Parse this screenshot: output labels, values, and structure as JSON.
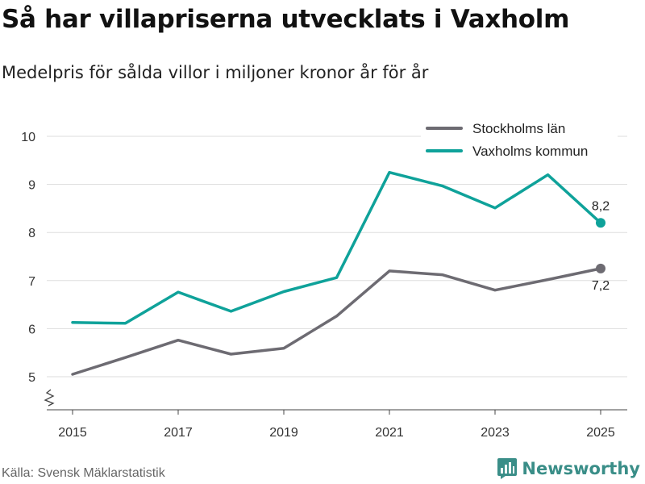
{
  "header": {
    "title": "Så har villapriserna utvecklats i Vaxholm",
    "subtitle": "Medelpris för sålda villor i miljoner kronor år för år"
  },
  "footer": {
    "source": "Källa: Svensk Mäklarstatistik",
    "brand": "Newsworthy"
  },
  "colors": {
    "stockholm": "#6d6b72",
    "vaxholm": "#0fa29a",
    "grid": "#dddddd",
    "brand": "#3a8e88"
  },
  "chart_data": {
    "type": "line",
    "title": "Så har villapriserna utvecklats i Vaxholm",
    "subtitle": "Medelpris för sålda villor i miljoner kronor år för år",
    "xlabel": "",
    "ylabel": "",
    "x": [
      2015,
      2016,
      2017,
      2018,
      2019,
      2020,
      2021,
      2022,
      2023,
      2024,
      2025
    ],
    "xticks": [
      2015,
      2017,
      2019,
      2021,
      2023,
      2025
    ],
    "yticks": [
      5,
      6,
      7,
      8,
      9,
      10
    ],
    "ylim": [
      4.3,
      10.4
    ],
    "y_axis_break": true,
    "grid": true,
    "legend_position": "top-right",
    "series": [
      {
        "name": "Stockholms län",
        "color_key": "stockholm",
        "values": [
          5.05,
          5.4,
          5.76,
          5.47,
          5.59,
          6.26,
          7.2,
          7.12,
          6.8,
          7.02,
          7.25
        ],
        "end_label": "7,2"
      },
      {
        "name": "Vaxholms kommun",
        "color_key": "vaxholm",
        "values": [
          6.13,
          6.11,
          6.76,
          6.36,
          6.77,
          7.06,
          9.25,
          8.97,
          8.51,
          9.2,
          8.2
        ],
        "end_label": "8,2"
      }
    ]
  }
}
